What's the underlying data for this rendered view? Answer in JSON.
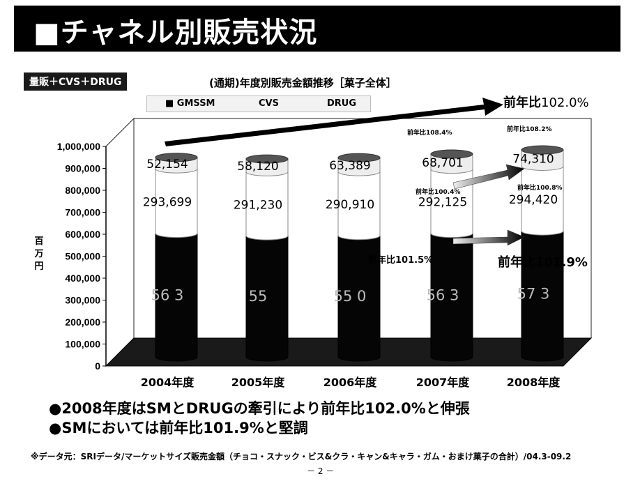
{
  "page": {
    "title": "■チャネル別販売状況",
    "subject_tag": "量販＋CVS＋DRUG",
    "bullets": [
      "●2008年度はSMとDRUGの牽引により前年比102.0%と伸張",
      "●SMにおいては前年比101.9%と堅調"
    ],
    "source": "※データ元：SRIデータ/マーケットサイズ販売金額（チョコ・スナック・ビス&クラ・キャン&キャラ・ガム・おまけ菓子の合計）/04.3-09.2",
    "page_number": "－ 2 －"
  },
  "chart_data": {
    "type": "bar",
    "title": "(通期)年度別販売金額推移［菓子全体］",
    "ylabel": "百万円",
    "ylim": [
      0,
      1000000
    ],
    "yticks": [
      "0",
      "100,000",
      "200,000",
      "300,000",
      "400,000",
      "500,000",
      "600,000",
      "700,000",
      "800,000",
      "900,000",
      "1,000,000"
    ],
    "categories": [
      "2004年度",
      "2005年度",
      "2006年度",
      "2007年度",
      "2008年度"
    ],
    "legend": [
      "■ GMSSM",
      "CVS",
      "DRUG"
    ],
    "series": [
      {
        "name": "GMSSM",
        "values": [
          563000,
          552000,
          553000,
          563000,
          574000
        ],
        "labels": [
          "56  3",
          "55  ",
          "55  0",
          "56  3",
          "57  3"
        ],
        "color": "#000000"
      },
      {
        "name": "CVS",
        "values": [
          293699,
          291230,
          290910,
          292125,
          294420
        ],
        "labels": [
          "293,699",
          "291,230",
          "290,910",
          "292,125",
          "294,420"
        ],
        "color": "#ffffff"
      },
      {
        "name": "DRUG",
        "values": [
          52154,
          58120,
          63389,
          68701,
          74310
        ],
        "labels": [
          "52,154",
          "58,120",
          "63,389",
          "68,701",
          "74,310"
        ],
        "color": "#f0f0f0"
      }
    ],
    "annotations": {
      "overall_label": "前年比",
      "overall_value": "102.0%",
      "drug_2007": "前年比108.4%",
      "drug_2008": "前年比108.2%",
      "cvs_2007": "前年比100.4%",
      "cvs_2008": "前年比100.8%",
      "sm_2007": "前年比101.5%",
      "sm_2008": "前年比101.9%"
    }
  }
}
